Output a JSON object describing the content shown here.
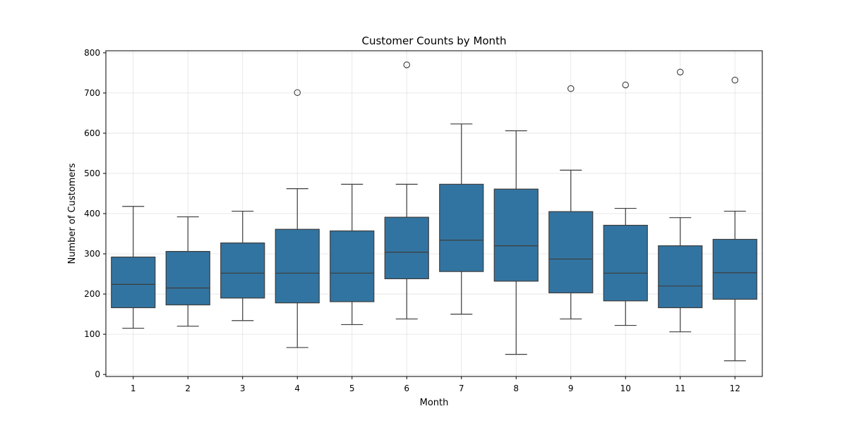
{
  "chart_data": {
    "type": "box",
    "title": "Customer Counts by Month",
    "xlabel": "Month",
    "ylabel": "Number of Customers",
    "categories": [
      "1",
      "2",
      "3",
      "4",
      "5",
      "6",
      "7",
      "8",
      "9",
      "10",
      "11",
      "12"
    ],
    "yticks": [
      "0",
      "100",
      "200",
      "300",
      "400",
      "500",
      "600",
      "700",
      "800"
    ],
    "ylim": [
      -5,
      805
    ],
    "grid": true,
    "box_color": "#3274a1",
    "line_color": "#3d3d3d",
    "boxes": [
      {
        "whisker_low": 115,
        "q1": 166,
        "median": 224,
        "q3": 292,
        "whisker_high": 418,
        "outliers": []
      },
      {
        "whisker_low": 120,
        "q1": 173,
        "median": 215,
        "q3": 306,
        "whisker_high": 392,
        "outliers": []
      },
      {
        "whisker_low": 134,
        "q1": 190,
        "median": 252,
        "q3": 327,
        "whisker_high": 406,
        "outliers": []
      },
      {
        "whisker_low": 67,
        "q1": 178,
        "median": 252,
        "q3": 361,
        "whisker_high": 462,
        "outliers": [
          701
        ]
      },
      {
        "whisker_low": 124,
        "q1": 181,
        "median": 252,
        "q3": 357,
        "whisker_high": 473,
        "outliers": []
      },
      {
        "whisker_low": 138,
        "q1": 238,
        "median": 304,
        "q3": 391,
        "whisker_high": 473,
        "outliers": [
          770
        ]
      },
      {
        "whisker_low": 150,
        "q1": 256,
        "median": 334,
        "q3": 473,
        "whisker_high": 623,
        "outliers": []
      },
      {
        "whisker_low": 50,
        "q1": 232,
        "median": 320,
        "q3": 461,
        "whisker_high": 606,
        "outliers": []
      },
      {
        "whisker_low": 138,
        "q1": 203,
        "median": 287,
        "q3": 405,
        "whisker_high": 508,
        "outliers": [
          711
        ]
      },
      {
        "whisker_low": 122,
        "q1": 183,
        "median": 252,
        "q3": 371,
        "whisker_high": 413,
        "outliers": [
          720
        ]
      },
      {
        "whisker_low": 106,
        "q1": 166,
        "median": 220,
        "q3": 320,
        "whisker_high": 390,
        "outliers": [
          752
        ]
      },
      {
        "whisker_low": 34,
        "q1": 187,
        "median": 253,
        "q3": 336,
        "whisker_high": 406,
        "outliers": [
          732
        ]
      }
    ]
  }
}
